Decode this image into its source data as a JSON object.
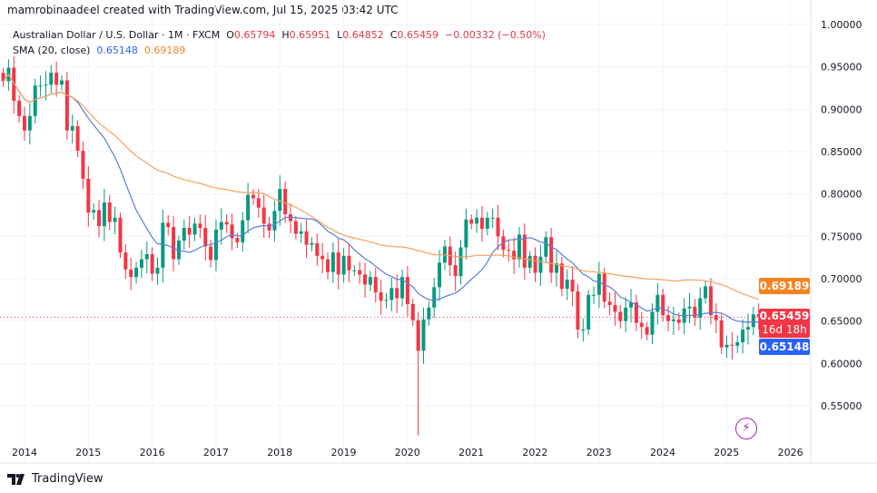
{
  "credit": "mamrobinaadeel created with TradingView.com, Jul 15, 2025 03:42 UTC",
  "legend": {
    "symbol": "Australian Dollar / U.S. Dollar · 1M · FXCM",
    "o_label": "O",
    "o": "0.65794",
    "h_label": "H",
    "h": "0.65951",
    "l_label": "L",
    "l": "0.64852",
    "c_label": "C",
    "c": "0.65459",
    "change": "−0.00332 (−0.50%)",
    "indicator": "SMA (20, close)",
    "sma_a": "0.65148",
    "sma_b": "0.69189"
  },
  "tags": {
    "sma_b": "0.69189",
    "price": "0.65459",
    "countdown": "16d 18h",
    "sma_a": "0.65148"
  },
  "footer": {
    "brand": "TradingView"
  },
  "colors": {
    "up": "#089981",
    "down": "#f23645",
    "sma_a": "#5b7fd6",
    "sma_b": "#f5a25d",
    "price_line": "#f23645"
  },
  "chart_data": {
    "type": "candlestick",
    "start": "2013-09",
    "interval": "1M",
    "closes": [
      0.933,
      0.949,
      0.91,
      0.892,
      0.875,
      0.892,
      0.928,
      0.928,
      0.929,
      0.943,
      0.929,
      0.934,
      0.875,
      0.88,
      0.851,
      0.818,
      0.778,
      0.781,
      0.762,
      0.79,
      0.767,
      0.772,
      0.731,
      0.711,
      0.702,
      0.713,
      0.723,
      0.729,
      0.706,
      0.713,
      0.766,
      0.761,
      0.723,
      0.745,
      0.76,
      0.752,
      0.765,
      0.76,
      0.738,
      0.722,
      0.758,
      0.767,
      0.764,
      0.748,
      0.743,
      0.769,
      0.799,
      0.795,
      0.784,
      0.765,
      0.757,
      0.78,
      0.806,
      0.776,
      0.768,
      0.753,
      0.756,
      0.74,
      0.742,
      0.727,
      0.723,
      0.708,
      0.731,
      0.705,
      0.727,
      0.71,
      0.71,
      0.705,
      0.693,
      0.702,
      0.684,
      0.674,
      0.675,
      0.689,
      0.677,
      0.702,
      0.67,
      0.651,
      0.615,
      0.652,
      0.666,
      0.69,
      0.719,
      0.738,
      0.716,
      0.703,
      0.737,
      0.77,
      0.765,
      0.772,
      0.759,
      0.772,
      0.772,
      0.75,
      0.734,
      0.733,
      0.723,
      0.752,
      0.713,
      0.727,
      0.707,
      0.726,
      0.749,
      0.707,
      0.718,
      0.688,
      0.699,
      0.685,
      0.64,
      0.64,
      0.681,
      0.681,
      0.706,
      0.673,
      0.669,
      0.661,
      0.65,
      0.666,
      0.672,
      0.648,
      0.643,
      0.634,
      0.661,
      0.681,
      0.657,
      0.65,
      0.652,
      0.648,
      0.665,
      0.667,
      0.654,
      0.677,
      0.691,
      0.657,
      0.651,
      0.619,
      0.622,
      0.621,
      0.625,
      0.64,
      0.643,
      0.658,
      0.65459
    ],
    "y_ticks": [
      "1.00000",
      "0.95000",
      "0.90000",
      "0.85000",
      "0.80000",
      "0.75000",
      "0.70000",
      "0.65000",
      "0.60000",
      "0.55000"
    ],
    "x_ticks": [
      "2014",
      "2015",
      "2016",
      "2017",
      "2018",
      "2019",
      "2020",
      "2021",
      "2022",
      "2023",
      "2024",
      "2025",
      "2026"
    ],
    "ylim": [
      0.55,
      1.0
    ],
    "grid": true
  }
}
